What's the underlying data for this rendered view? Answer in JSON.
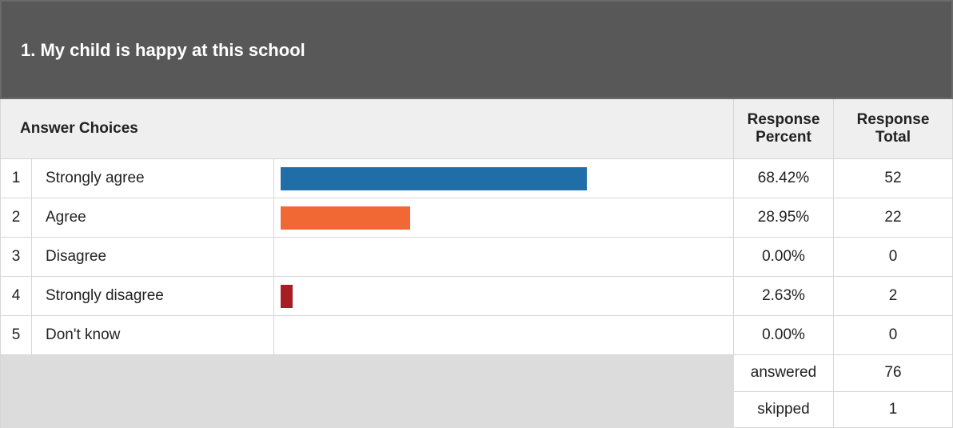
{
  "title": "1. My child is happy at this school",
  "header": {
    "choices": "Answer Choices",
    "percent": "Response Percent",
    "total": "Response Total"
  },
  "rows": [
    {
      "number": "1",
      "choice": "Strongly agree",
      "percent": 68.42,
      "percent_label": "68.42%",
      "total": 52,
      "color": "#1f6ea7"
    },
    {
      "number": "2",
      "choice": "Agree",
      "percent": 28.95,
      "percent_label": "28.95%",
      "total": 22,
      "color": "#f26835"
    },
    {
      "number": "3",
      "choice": "Disagree",
      "percent": 0,
      "percent_label": "0.00%",
      "total": 0
    },
    {
      "number": "4",
      "choice": "Strongly disagree",
      "percent": 2.63,
      "percent_label": "2.63%",
      "total": 2,
      "color": "#a71e22"
    },
    {
      "number": "5",
      "choice": "Don't know",
      "percent": 0,
      "percent_label": "0.00%",
      "total": 0
    }
  ],
  "summary": [
    {
      "label": "answered",
      "value": 76
    },
    {
      "label": "skipped",
      "value": 1
    }
  ],
  "bar_scale": [
    0,
    100
  ]
}
